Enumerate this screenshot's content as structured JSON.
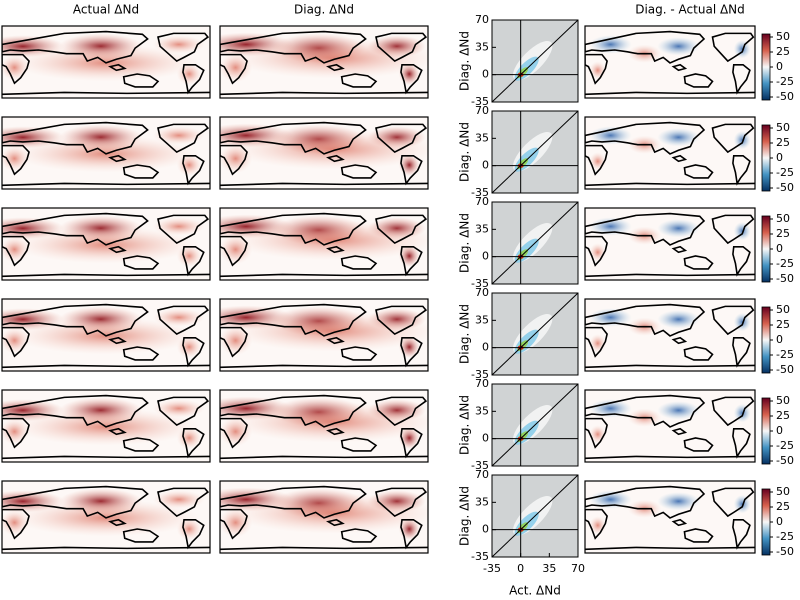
{
  "chart_data": {
    "column_titles": [
      "Actual ΔNd",
      "Diag. ΔNd",
      "Diag. - Actual ΔNd"
    ],
    "panels": [
      {
        "type": "scatter",
        "ylabel": "Diag. ΔNd",
        "xlim": [
          -35,
          70
        ],
        "ylim": [
          -35,
          70
        ],
        "yticks": [
          -35,
          0,
          35,
          70
        ],
        "colorbar": {
          "ylim": [
            -55,
            55
          ],
          "yticks": [
            50,
            25,
            0,
            -25,
            -50
          ]
        }
      },
      {
        "type": "scatter",
        "ylabel": "Diag. ΔNd",
        "xlim": [
          -35,
          70
        ],
        "ylim": [
          -35,
          70
        ],
        "yticks": [
          -35,
          0,
          35,
          70
        ],
        "colorbar": {
          "ylim": [
            -55,
            55
          ],
          "yticks": [
            50,
            25,
            0,
            -25,
            -50
          ]
        }
      },
      {
        "type": "scatter",
        "ylabel": "Diag. ΔNd",
        "xlim": [
          -35,
          70
        ],
        "ylim": [
          -35,
          70
        ],
        "yticks": [
          -35,
          0,
          35,
          70
        ],
        "colorbar": {
          "ylim": [
            -55,
            55
          ],
          "yticks": [
            50,
            25,
            0,
            -25,
            -50
          ]
        }
      },
      {
        "type": "scatter",
        "ylabel": "Diag. ΔNd",
        "xlim": [
          -35,
          70
        ],
        "ylim": [
          -35,
          70
        ],
        "yticks": [
          -35,
          0,
          35,
          70
        ],
        "colorbar": {
          "ylim": [
            -55,
            55
          ],
          "yticks": [
            50,
            25,
            0,
            -25,
            -50
          ]
        }
      },
      {
        "type": "scatter",
        "ylabel": "Diag. ΔNd",
        "xlim": [
          -35,
          70
        ],
        "ylim": [
          -35,
          70
        ],
        "yticks": [
          -35,
          0,
          35,
          70
        ],
        "colorbar": {
          "ylim": [
            -55,
            55
          ],
          "yticks": [
            50,
            25,
            0,
            -25,
            -50
          ]
        }
      },
      {
        "type": "scatter",
        "ylabel": "Diag. ΔNd",
        "xlim": [
          -35,
          70
        ],
        "ylim": [
          -35,
          70
        ],
        "yticks": [
          -35,
          0,
          35,
          70
        ],
        "xticks": [
          -35,
          0,
          35,
          70
        ],
        "xlabel": "Act. ΔNd",
        "colorbar": {
          "ylim": [
            -55,
            55
          ],
          "yticks": [
            50,
            25,
            0,
            -25,
            -50
          ]
        }
      }
    ]
  }
}
